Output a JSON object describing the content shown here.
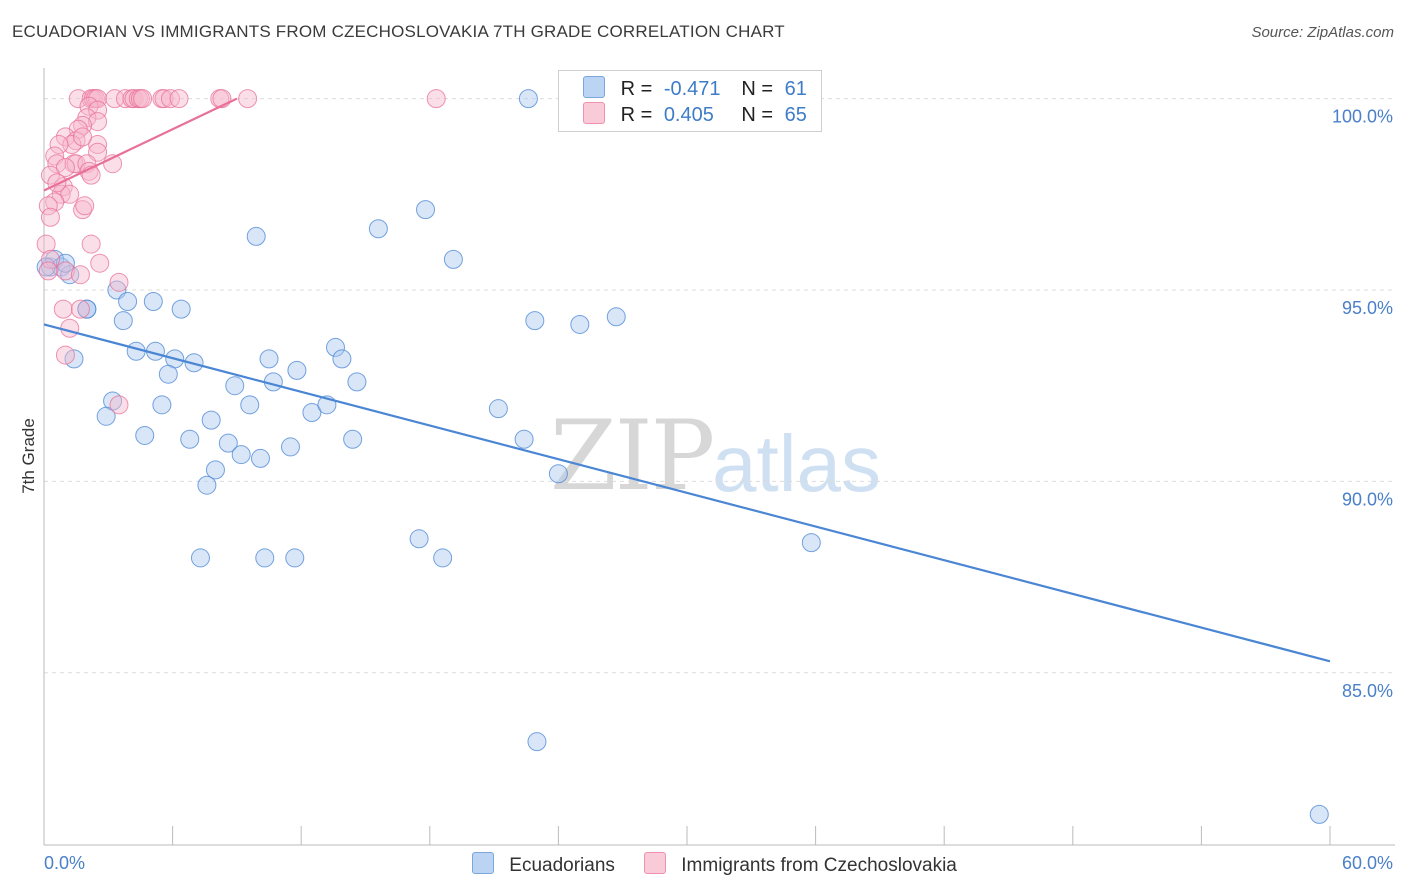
{
  "title": "ECUADORIAN VS IMMIGRANTS FROM CZECHOSLOVAKIA 7TH GRADE CORRELATION CHART",
  "source": "Source: ZipAtlas.com",
  "watermark": {
    "zip": "ZIP",
    "atlas": "atlas"
  },
  "legend": {
    "r_label": "R =",
    "n_label": "N =",
    "rows": [
      {
        "r": "-0.471",
        "n": "61",
        "color": "#a8c8f0"
      },
      {
        "r": "0.405",
        "n": "65",
        "color": "#f6b8cb"
      }
    ]
  },
  "bottom_legend": [
    "Ecuadorians",
    "Immigrants from Czechoslovakia"
  ],
  "chart_data": {
    "type": "scatter",
    "title": "ECUADORIAN VS IMMIGRANTS FROM CZECHOSLOVAKIA 7TH GRADE CORRELATION CHART",
    "xlabel": "",
    "ylabel": "7th Grade",
    "xlim": [
      0,
      60
    ],
    "ylim": [
      80.5,
      100.8
    ],
    "x_tick_labels": [
      "0.0%",
      "60.0%"
    ],
    "y_ticks": [
      85,
      90,
      95,
      100
    ],
    "y_tick_labels": [
      "85.0%",
      "90.0%",
      "95.0%",
      "100.0%"
    ],
    "grid": true,
    "series": [
      {
        "name": "Ecuadorians",
        "color": "#4a86d4",
        "fill": "#a8c8f0",
        "trend": {
          "x0": 0,
          "y0": 94.1,
          "x1": 60,
          "y1": 85.3
        },
        "points": [
          [
            0.3,
            95.6
          ],
          [
            0.5,
            95.8
          ],
          [
            0.8,
            95.6
          ],
          [
            1.2,
            95.4
          ],
          [
            2.0,
            94.5
          ],
          [
            3.4,
            95.0
          ],
          [
            3.9,
            94.7
          ],
          [
            5.1,
            94.7
          ],
          [
            6.4,
            94.5
          ],
          [
            2.0,
            94.5
          ],
          [
            3.7,
            94.2
          ],
          [
            1.4,
            93.2
          ],
          [
            4.3,
            93.4
          ],
          [
            5.2,
            93.4
          ],
          [
            6.1,
            93.2
          ],
          [
            7.0,
            93.1
          ],
          [
            5.8,
            92.8
          ],
          [
            8.9,
            92.5
          ],
          [
            10.5,
            93.2
          ],
          [
            10.7,
            92.6
          ],
          [
            11.8,
            92.9
          ],
          [
            13.6,
            93.5
          ],
          [
            13.9,
            93.2
          ],
          [
            14.6,
            92.6
          ],
          [
            3.2,
            92.1
          ],
          [
            2.9,
            91.7
          ],
          [
            5.5,
            92.0
          ],
          [
            9.6,
            92.0
          ],
          [
            7.8,
            91.6
          ],
          [
            12.5,
            91.8
          ],
          [
            13.2,
            92.0
          ],
          [
            4.7,
            91.2
          ],
          [
            6.8,
            91.1
          ],
          [
            8.6,
            91.0
          ],
          [
            9.2,
            90.7
          ],
          [
            10.1,
            90.6
          ],
          [
            11.5,
            90.9
          ],
          [
            14.4,
            91.1
          ],
          [
            8.0,
            90.3
          ],
          [
            7.6,
            89.9
          ],
          [
            7.3,
            88.0
          ],
          [
            10.3,
            88.0
          ],
          [
            11.7,
            88.0
          ],
          [
            17.5,
            88.5
          ],
          [
            18.6,
            88.0
          ],
          [
            9.9,
            96.4
          ],
          [
            15.6,
            96.6
          ],
          [
            17.8,
            97.1
          ],
          [
            19.1,
            95.8
          ],
          [
            22.6,
            100.0
          ],
          [
            22.9,
            94.2
          ],
          [
            25.0,
            94.1
          ],
          [
            26.7,
            94.3
          ],
          [
            21.2,
            91.9
          ],
          [
            22.4,
            91.1
          ],
          [
            24.0,
            90.2
          ],
          [
            35.8,
            88.4
          ],
          [
            23.0,
            83.2
          ],
          [
            59.5,
            81.3
          ],
          [
            1.0,
            95.7
          ],
          [
            0.1,
            95.6
          ]
        ]
      },
      {
        "name": "Immigrants from Czechoslovakia",
        "color": "#e8709a",
        "fill": "#f6b8cb",
        "trend": {
          "x0": 0,
          "y0": 97.6,
          "x1": 9,
          "y1": 100.0
        },
        "points": [
          [
            1.6,
            100.0
          ],
          [
            2.2,
            100.0
          ],
          [
            2.3,
            100.0
          ],
          [
            2.4,
            100.0
          ],
          [
            2.5,
            100.0
          ],
          [
            3.3,
            100.0
          ],
          [
            3.8,
            100.0
          ],
          [
            4.1,
            100.0
          ],
          [
            4.2,
            100.0
          ],
          [
            4.4,
            100.0
          ],
          [
            4.5,
            100.0
          ],
          [
            4.6,
            100.0
          ],
          [
            5.5,
            100.0
          ],
          [
            5.6,
            100.0
          ],
          [
            5.9,
            100.0
          ],
          [
            6.3,
            100.0
          ],
          [
            8.2,
            100.0
          ],
          [
            8.3,
            100.0
          ],
          [
            9.5,
            100.0
          ],
          [
            18.3,
            100.0
          ],
          [
            2.1,
            99.8
          ],
          [
            2.5,
            99.7
          ],
          [
            2.0,
            99.5
          ],
          [
            2.5,
            99.4
          ],
          [
            1.8,
            99.3
          ],
          [
            1.6,
            99.2
          ],
          [
            1.0,
            99.0
          ],
          [
            1.5,
            98.9
          ],
          [
            2.5,
            98.8
          ],
          [
            1.3,
            98.8
          ],
          [
            0.7,
            98.8
          ],
          [
            2.5,
            98.6
          ],
          [
            0.5,
            98.5
          ],
          [
            0.6,
            98.3
          ],
          [
            1.4,
            98.3
          ],
          [
            1.5,
            98.3
          ],
          [
            2.0,
            98.3
          ],
          [
            3.2,
            98.3
          ],
          [
            1.0,
            98.2
          ],
          [
            2.1,
            98.1
          ],
          [
            0.3,
            98.0
          ],
          [
            2.2,
            98.0
          ],
          [
            0.9,
            97.7
          ],
          [
            0.8,
            97.5
          ],
          [
            1.2,
            97.5
          ],
          [
            0.5,
            97.3
          ],
          [
            0.2,
            97.2
          ],
          [
            1.8,
            97.1
          ],
          [
            0.3,
            96.9
          ],
          [
            0.1,
            96.2
          ],
          [
            2.2,
            96.2
          ],
          [
            0.3,
            95.8
          ],
          [
            2.6,
            95.7
          ],
          [
            1.0,
            95.5
          ],
          [
            0.2,
            95.5
          ],
          [
            1.7,
            95.4
          ],
          [
            3.5,
            95.2
          ],
          [
            0.9,
            94.5
          ],
          [
            1.7,
            94.5
          ],
          [
            1.2,
            94.0
          ],
          [
            1.0,
            93.3
          ],
          [
            3.5,
            92.0
          ],
          [
            1.8,
            99.0
          ],
          [
            0.6,
            97.8
          ],
          [
            1.9,
            97.2
          ]
        ]
      }
    ]
  }
}
